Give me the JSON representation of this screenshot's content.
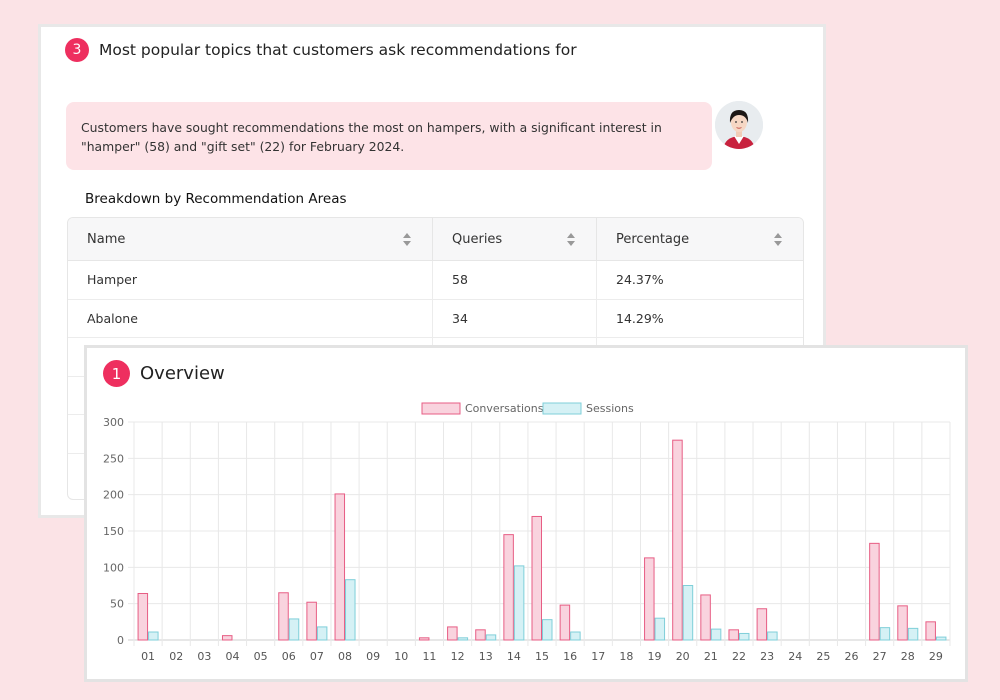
{
  "topics_card": {
    "number": "3",
    "title": "Most popular topics that customers ask recommendations for",
    "summary": "Customers have sought recommendations the most on hampers, with a significant interest in \"hamper\" (58) and \"gift set\" (22) for February 2024.",
    "breakdown_title": "Breakdown by Recommendation Areas",
    "table": {
      "headers": [
        "Name",
        "Queries",
        "Percentage"
      ],
      "rows": [
        [
          "Hamper",
          "58",
          "24.37%"
        ],
        [
          "Abalone",
          "34",
          "14.29%"
        ]
      ]
    }
  },
  "overview_card": {
    "number": "1",
    "title": "Overview"
  },
  "colors": {
    "accent": "#ee2f5f",
    "conversations_fill": "#f9d3de",
    "conversations_stroke": "#e75d84",
    "sessions_fill": "#d5f1f5",
    "sessions_stroke": "#7fcfd9"
  },
  "chart_data": {
    "type": "bar",
    "legend_position": "top",
    "grid": true,
    "ylim": [
      0,
      300
    ],
    "yticks": [
      0,
      50,
      100,
      150,
      200,
      250,
      300
    ],
    "categories": [
      "01",
      "02",
      "03",
      "04",
      "05",
      "06",
      "07",
      "08",
      "09",
      "10",
      "11",
      "12",
      "13",
      "14",
      "15",
      "16",
      "17",
      "18",
      "19",
      "20",
      "21",
      "22",
      "23",
      "24",
      "25",
      "26",
      "27",
      "28",
      "29"
    ],
    "series": [
      {
        "name": "Conversations",
        "values": [
          64,
          0,
          0,
          6,
          0,
          65,
          52,
          201,
          0,
          0,
          3,
          18,
          14,
          145,
          170,
          48,
          0,
          0,
          113,
          275,
          62,
          14,
          43,
          0,
          0,
          0,
          133,
          47,
          25
        ]
      },
      {
        "name": "Sessions",
        "values": [
          11,
          0,
          0,
          0,
          0,
          29,
          18,
          83,
          0,
          0,
          0,
          3,
          7,
          102,
          28,
          11,
          0,
          0,
          30,
          75,
          15,
          9,
          11,
          0,
          0,
          0,
          17,
          16,
          4
        ]
      }
    ]
  }
}
